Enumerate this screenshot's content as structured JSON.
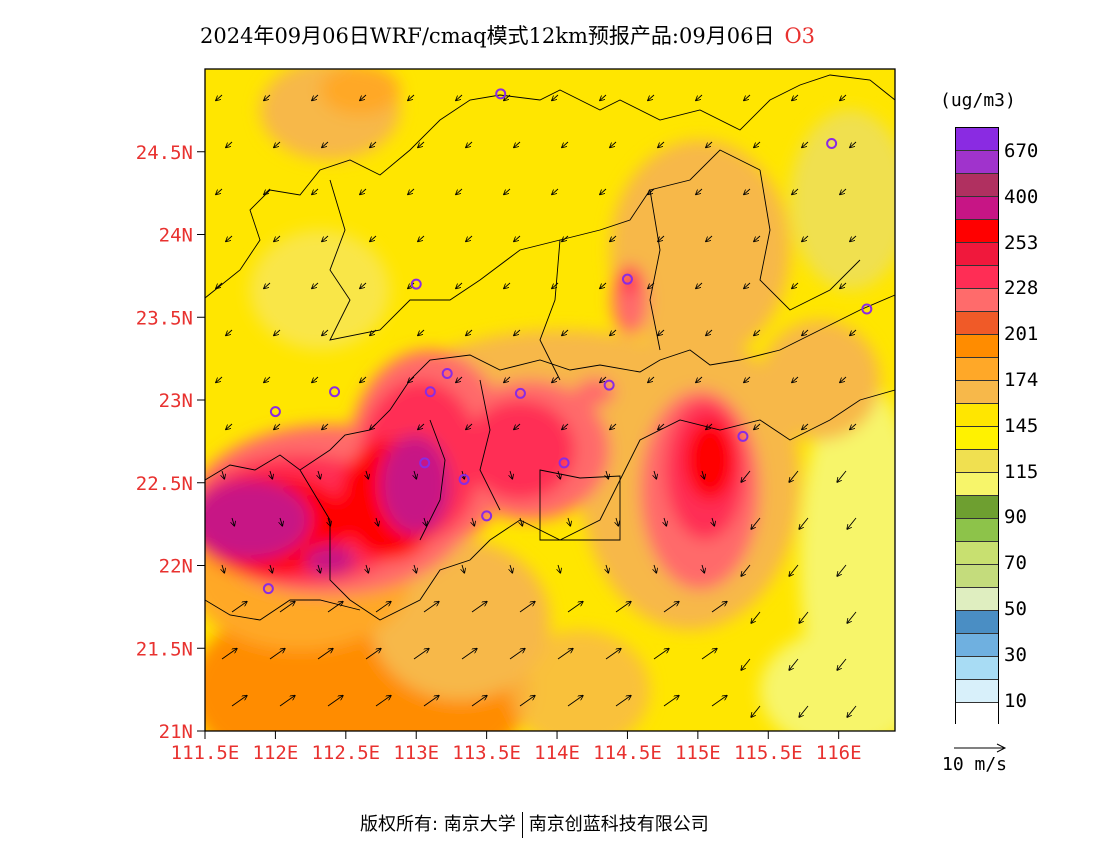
{
  "title": {
    "main": "2024年09月06日WRF/cmaq模式12km预报产品:09月06日",
    "species": "O3"
  },
  "axes": {
    "lat_labels": [
      "24.5N",
      "24N",
      "23.5N",
      "23N",
      "22.5N",
      "22N",
      "21.5N",
      "21N"
    ],
    "lon_labels": [
      "111.5E",
      "112E",
      "112.5E",
      "113E",
      "113.5E",
      "114E",
      "114.5E",
      "115E",
      "115.5E",
      "116E"
    ],
    "lat_range": [
      21.0,
      25.0
    ],
    "lon_range": [
      111.5,
      116.4
    ]
  },
  "legend": {
    "unit": "(ug/m3)",
    "colors": [
      "#8a2be2",
      "#a033cc",
      "#b03060",
      "#c71585",
      "#ff0000",
      "#f0183c",
      "#ff2d55",
      "#ff6b6b",
      "#f05a28",
      "#ff8c00",
      "#ffa828",
      "#f7b84a",
      "#ffe600",
      "#fff200",
      "#f0e050",
      "#f7f56a",
      "#6e9f30",
      "#8dc34a",
      "#c8e070",
      "#c4dc7c",
      "#dfeec0",
      "#4a8ec4",
      "#6fb0e0",
      "#a8dcf4",
      "#d8f0fa",
      "#ffffff"
    ],
    "labels": [
      "670",
      "400",
      "253",
      "228",
      "201",
      "174",
      "145",
      "115",
      "90",
      "70",
      "50",
      "30",
      "10"
    ]
  },
  "vector_reference": {
    "label": "10 m/s"
  },
  "footer": {
    "left": "版权所有: 南京大学",
    "right": "南京创蓝科技有限公司"
  },
  "stations": [
    {
      "lon": 113.6,
      "lat": 24.85
    },
    {
      "lon": 115.95,
      "lat": 24.55
    },
    {
      "lon": 113.0,
      "lat": 23.7
    },
    {
      "lon": 114.5,
      "lat": 23.73
    },
    {
      "lon": 116.2,
      "lat": 23.55
    },
    {
      "lon": 112.0,
      "lat": 22.93
    },
    {
      "lon": 112.42,
      "lat": 23.05
    },
    {
      "lon": 113.1,
      "lat": 23.05
    },
    {
      "lon": 113.22,
      "lat": 23.16
    },
    {
      "lon": 113.74,
      "lat": 23.04
    },
    {
      "lon": 114.37,
      "lat": 23.09
    },
    {
      "lon": 115.32,
      "lat": 22.78
    },
    {
      "lon": 113.06,
      "lat": 22.62
    },
    {
      "lon": 113.34,
      "lat": 22.52
    },
    {
      "lon": 114.05,
      "lat": 22.62
    },
    {
      "lon": 113.5,
      "lat": 22.3
    },
    {
      "lon": 111.95,
      "lat": 21.86
    }
  ]
}
